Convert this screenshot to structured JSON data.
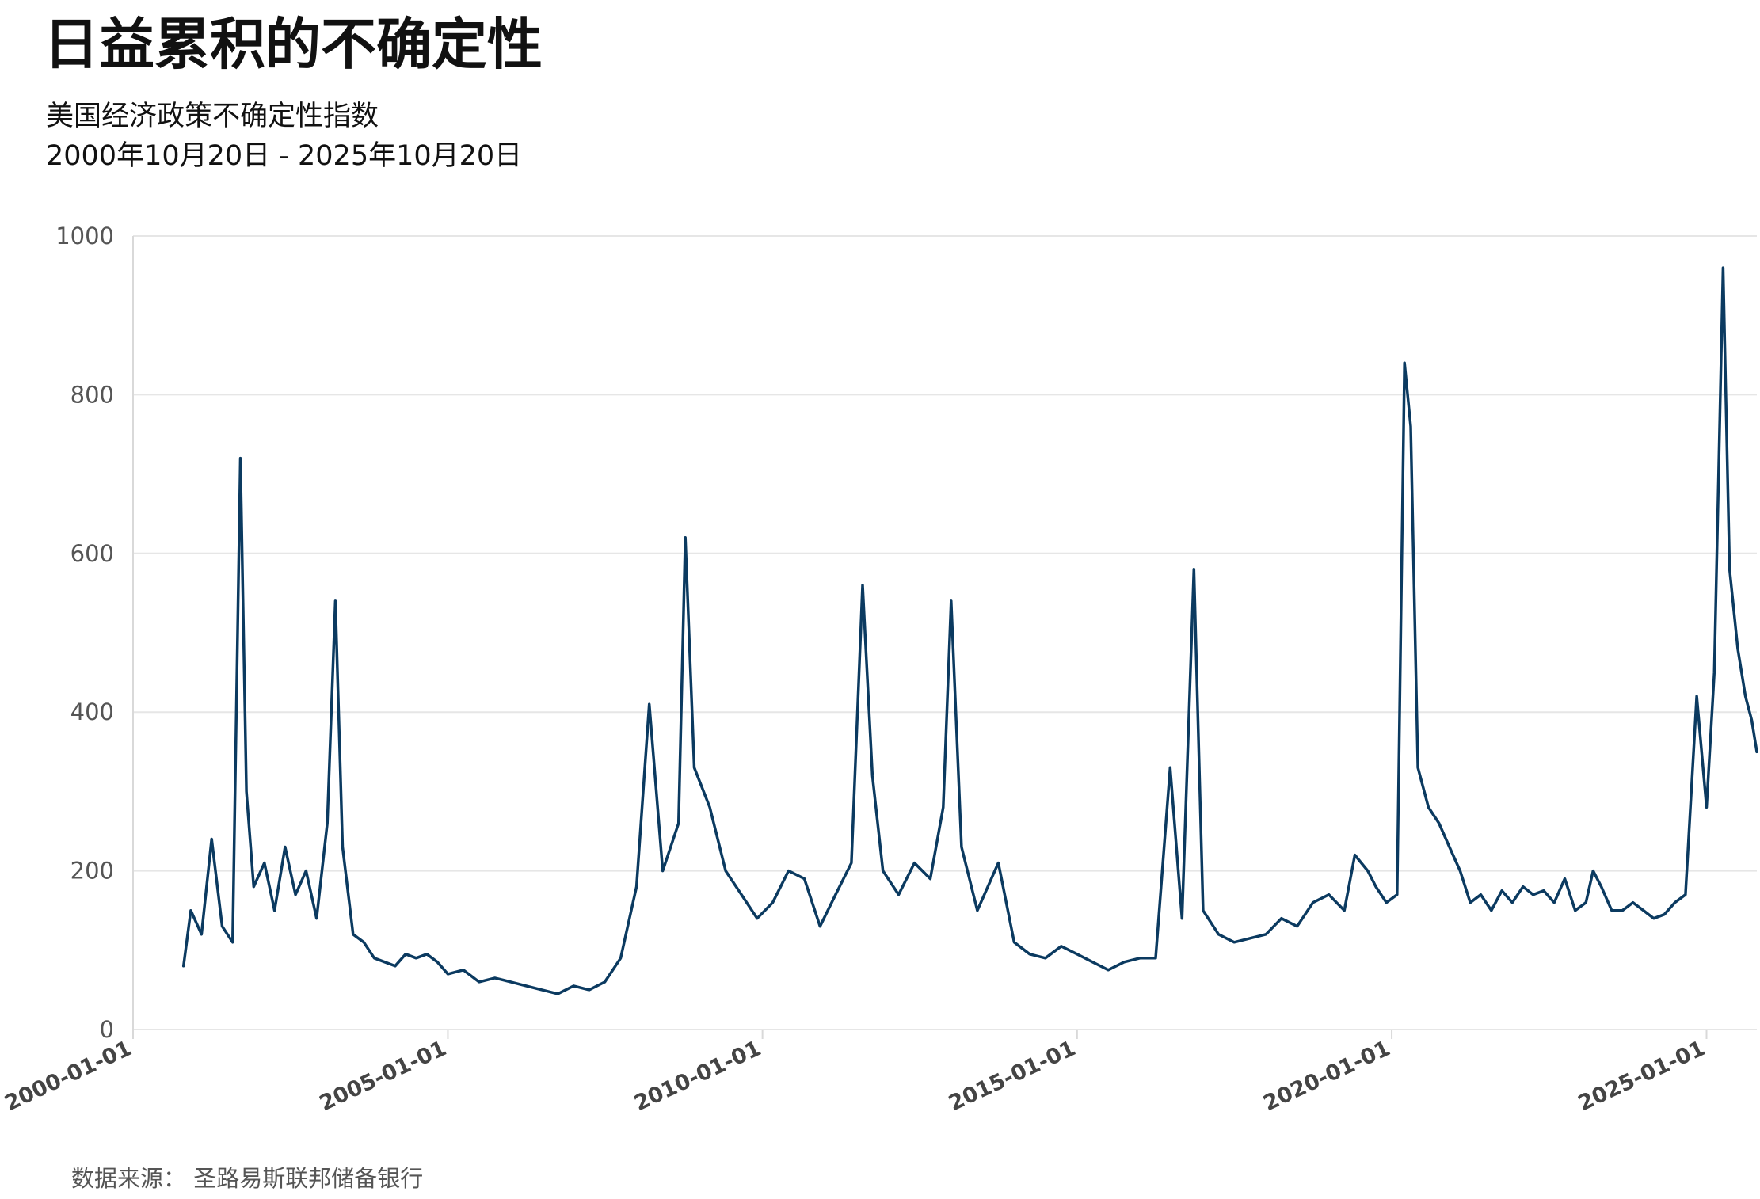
{
  "header": {
    "title": "日益累积的不确定性",
    "subtitle_line1": "美国经济政策不确定性指数",
    "subtitle_line2": "2000年10月20日 - 2025年10月20日"
  },
  "footer": {
    "source": "数据来源：  圣路易斯联邦储备银行"
  },
  "colors": {
    "line": "#0b3a60",
    "grid": "#e6e6e6",
    "axis": "#d9d9d9"
  },
  "chart_data": {
    "type": "line",
    "title": "日益累积的不确定性",
    "subtitle": "美国经济政策不确定性指数",
    "xlabel": "",
    "ylabel": "",
    "xlim": [
      "2000-01-01",
      "2025-10-20"
    ],
    "ylim": [
      0,
      1000
    ],
    "grid": true,
    "legend": "none",
    "y_ticks": [
      0,
      200,
      400,
      600,
      800,
      1000
    ],
    "x_ticks": [
      "2000-01-01",
      "2005-01-01",
      "2010-01-01",
      "2015-01-01",
      "2020-01-01",
      "2025-01-01"
    ],
    "series": [
      {
        "x": [
          "2000-10-20",
          "2000-12-01",
          "2001-02-01",
          "2001-04-01",
          "2001-06-01",
          "2001-08-01",
          "2001-09-15",
          "2001-10-20",
          "2001-12-01",
          "2002-02-01",
          "2002-04-01",
          "2002-06-01",
          "2002-08-01",
          "2002-10-01",
          "2002-12-01",
          "2003-02-01",
          "2003-03-20",
          "2003-05-01",
          "2003-07-01",
          "2003-09-01",
          "2003-11-01",
          "2004-01-01",
          "2004-03-01",
          "2004-05-01",
          "2004-07-01",
          "2004-09-01",
          "2004-11-01",
          "2005-01-01",
          "2005-04-01",
          "2005-07-01",
          "2005-10-01",
          "2006-01-01",
          "2006-04-01",
          "2006-07-01",
          "2006-10-01",
          "2007-01-01",
          "2007-04-01",
          "2007-07-01",
          "2007-10-01",
          "2008-01-01",
          "2008-03-15",
          "2008-06-01",
          "2008-09-01",
          "2008-10-10",
          "2008-12-01",
          "2009-03-01",
          "2009-06-01",
          "2009-09-01",
          "2009-12-01",
          "2010-03-01",
          "2010-06-01",
          "2010-09-01",
          "2010-12-01",
          "2011-03-01",
          "2011-06-01",
          "2011-08-05",
          "2011-10-01",
          "2011-12-01",
          "2012-03-01",
          "2012-06-01",
          "2012-09-01",
          "2012-11-15",
          "2012-12-31",
          "2013-03-01",
          "2013-06-01",
          "2013-10-01",
          "2014-01-01",
          "2014-04-01",
          "2014-07-01",
          "2014-10-01",
          "2015-01-01",
          "2015-04-01",
          "2015-07-01",
          "2015-10-01",
          "2016-01-01",
          "2016-04-01",
          "2016-06-24",
          "2016-09-01",
          "2016-11-09",
          "2017-01-01",
          "2017-04-01",
          "2017-07-01",
          "2017-10-01",
          "2018-01-01",
          "2018-04-01",
          "2018-07-01",
          "2018-10-01",
          "2019-01-01",
          "2019-04-01",
          "2019-06-01",
          "2019-08-15",
          "2019-10-01",
          "2019-12-01",
          "2020-02-01",
          "2020-03-15",
          "2020-04-20",
          "2020-06-01",
          "2020-08-01",
          "2020-10-01",
          "2020-12-01",
          "2021-02-01",
          "2021-04-01",
          "2021-06-01",
          "2021-08-01",
          "2021-10-01",
          "2021-12-01",
          "2022-02-01",
          "2022-04-01",
          "2022-06-01",
          "2022-08-01",
          "2022-10-01",
          "2022-12-01",
          "2023-02-01",
          "2023-03-15",
          "2023-05-01",
          "2023-07-01",
          "2023-09-01",
          "2023-11-01",
          "2024-01-01",
          "2024-03-01",
          "2024-05-01",
          "2024-07-01",
          "2024-09-01",
          "2024-11-05",
          "2025-01-01",
          "2025-02-15",
          "2025-04-07",
          "2025-05-15",
          "2025-07-01",
          "2025-08-15",
          "2025-09-20",
          "2025-10-20"
        ],
        "values": [
          80,
          150,
          120,
          240,
          130,
          110,
          720,
          300,
          180,
          210,
          150,
          230,
          170,
          200,
          140,
          260,
          540,
          230,
          120,
          110,
          90,
          85,
          80,
          95,
          90,
          95,
          85,
          70,
          75,
          60,
          65,
          60,
          55,
          50,
          45,
          55,
          50,
          60,
          90,
          180,
          410,
          200,
          260,
          620,
          330,
          280,
          200,
          170,
          140,
          160,
          200,
          190,
          130,
          170,
          210,
          560,
          320,
          200,
          170,
          210,
          190,
          280,
          540,
          230,
          150,
          210,
          110,
          95,
          90,
          105,
          95,
          85,
          75,
          85,
          90,
          90,
          330,
          140,
          580,
          150,
          120,
          110,
          115,
          120,
          140,
          130,
          160,
          170,
          150,
          220,
          200,
          180,
          160,
          170,
          840,
          760,
          330,
          280,
          260,
          230,
          200,
          160,
          170,
          150,
          175,
          160,
          180,
          170,
          175,
          160,
          190,
          150,
          160,
          200,
          180,
          150,
          150,
          160,
          150,
          140,
          145,
          160,
          170,
          420,
          280,
          450,
          960,
          580,
          480,
          420,
          390,
          350
        ]
      }
    ]
  }
}
